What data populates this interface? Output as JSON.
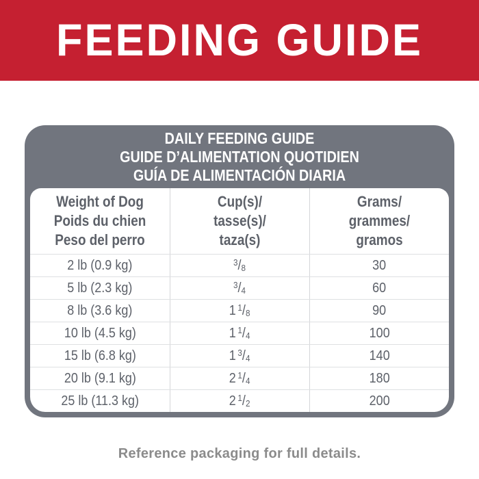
{
  "banner": {
    "title": "FEEDING GUIDE",
    "bg_color": "#c52031",
    "text_color": "#ffffff"
  },
  "card": {
    "bg_color": "#71757e",
    "header_lines": [
      "DAILY FEEDING GUIDE",
      "GUIDE D’ALIMENTATION QUOTIDIEN",
      "GUÍA DE ALIMENTACIÓN DIARIA"
    ]
  },
  "table": {
    "columns": [
      {
        "id": "weight",
        "lines": [
          "Weight of Dog",
          "Poids du chien",
          "Peso del perro"
        ]
      },
      {
        "id": "cups",
        "lines": [
          "Cup(s)/",
          "tasse(s)/",
          "taza(s)"
        ]
      },
      {
        "id": "grams",
        "lines": [
          "Grams/",
          "grammes/",
          "gramos"
        ]
      }
    ],
    "rows": [
      {
        "weight": "2 lb (0.9 kg)",
        "cups_whole": "",
        "cups_num": "3",
        "cups_den": "8",
        "cups_text": "3/8",
        "grams": "30"
      },
      {
        "weight": "5 lb (2.3 kg)",
        "cups_whole": "",
        "cups_num": "3",
        "cups_den": "4",
        "cups_text": "3/4",
        "grams": "60"
      },
      {
        "weight": "8 lb (3.6 kg)",
        "cups_whole": "1",
        "cups_num": "1",
        "cups_den": "8",
        "cups_text": "1 1/8",
        "grams": "90"
      },
      {
        "weight": "10 lb (4.5 kg)",
        "cups_whole": "1",
        "cups_num": "1",
        "cups_den": "4",
        "cups_text": "1 1/4",
        "grams": "100"
      },
      {
        "weight": "15 lb (6.8 kg)",
        "cups_whole": "1",
        "cups_num": "3",
        "cups_den": "4",
        "cups_text": "1 3/4",
        "grams": "140"
      },
      {
        "weight": "20 lb (9.1 kg)",
        "cups_whole": "2",
        "cups_num": "1",
        "cups_den": "4",
        "cups_text": "2 1/4",
        "grams": "180"
      },
      {
        "weight": "25 lb (11.3 kg)",
        "cups_whole": "2",
        "cups_num": "1",
        "cups_den": "2",
        "cups_text": "2 1/2",
        "grams": "200"
      }
    ]
  },
  "footer": {
    "note": "Reference packaging for full details."
  },
  "colors": {
    "table_text": "#5d6169",
    "grid_line": "#d4d5d8",
    "footer_text": "#8b8b8b"
  }
}
